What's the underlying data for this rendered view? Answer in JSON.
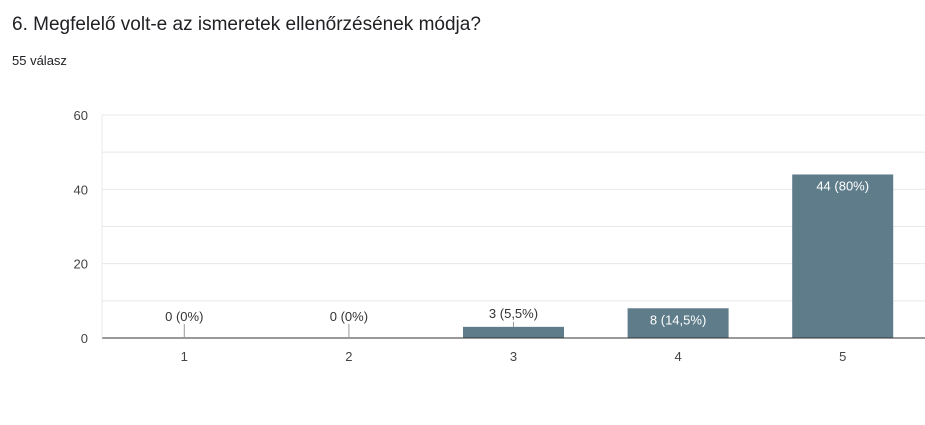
{
  "question": {
    "title": "6. Megfelelő volt-e az ismeretek ellenőrzésének módja?",
    "response_count": "55 válasz"
  },
  "colors": {
    "bar": "#5f7c8a",
    "grid": "#e8e8e8",
    "axis": "#333333",
    "label_inside": "#ffffff",
    "label_outside": "#333333"
  },
  "chart_data": {
    "type": "bar",
    "categories": [
      "1",
      "2",
      "3",
      "4",
      "5"
    ],
    "values": [
      0,
      0,
      3,
      8,
      44
    ],
    "data_labels": [
      "0 (0%)",
      "0 (0%)",
      "3 (5,5%)",
      "8 (14,5%)",
      "44 (80%)"
    ],
    "y_ticks": [
      "0",
      "20",
      "40",
      "60"
    ],
    "ylim": [
      0,
      60
    ],
    "grid": true,
    "legend": "none",
    "title": "",
    "xlabel": "",
    "ylabel": ""
  }
}
